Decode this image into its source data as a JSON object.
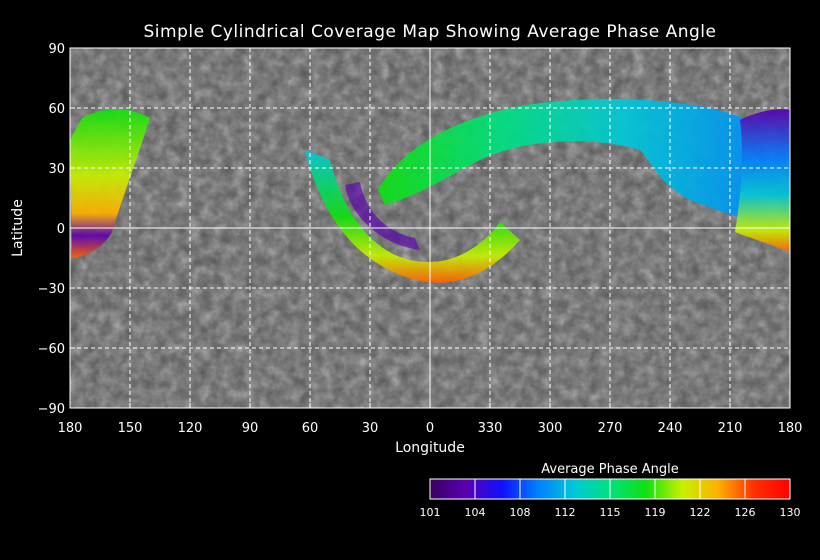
{
  "title": "Simple Cylindrical Coverage Map Showing Average Phase Angle",
  "map": {
    "projection": "simple cylindrical",
    "xlabel": "Longitude",
    "ylabel": "Latitude",
    "lat_ticks": [
      "90",
      "60",
      "30",
      "0",
      "−30",
      "−60",
      "−90"
    ],
    "lon_ticks": [
      "180",
      "150",
      "120",
      "90",
      "60",
      "30",
      "0",
      "330",
      "300",
      "270",
      "240",
      "210",
      "180"
    ],
    "grid": true
  },
  "colorbar": {
    "title": "Average Phase Angle",
    "ticks": [
      "101",
      "104",
      "108",
      "112",
      "115",
      "119",
      "122",
      "126",
      "130"
    ],
    "colors": [
      "#3a0060",
      "#5a00b0",
      "#1010ff",
      "#0080ff",
      "#00c8d8",
      "#00e080",
      "#10e010",
      "#c8f000",
      "#ffb000",
      "#ff3000",
      "#ff0000"
    ]
  }
}
